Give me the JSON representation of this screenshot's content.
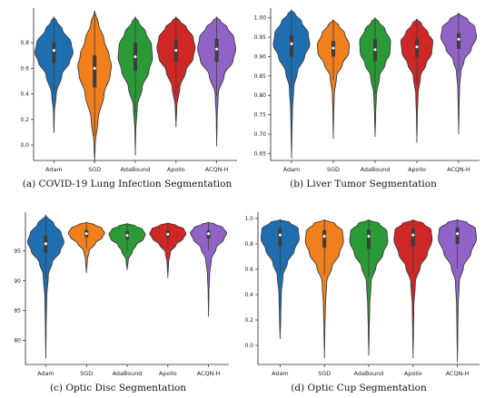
{
  "colors": {
    "Adam": "#1f6fb0",
    "SGD": "#f07f1c",
    "AdaBound": "#2a9a37",
    "Apollo": "#cf2626",
    "ACQN-H": "#9163c6"
  },
  "chart_data": [
    {
      "type": "violin",
      "caption": "(a) COVID-19 Lung Infection Segmentation",
      "categories": [
        "Adam",
        "SGD",
        "AdaBound",
        "Apollo",
        "ACQN-H"
      ],
      "yticks": [
        "0.0",
        "0.2",
        "0.4",
        "0.6",
        "0.8"
      ],
      "ytick_values": [
        0.0,
        0.2,
        0.4,
        0.6,
        0.8
      ],
      "ylim": [
        -0.12,
        1.07
      ],
      "violins": [
        {
          "name": "Adam",
          "min": 0.1,
          "max": 1.0,
          "q1": 0.64,
          "q3": 0.8,
          "median": 0.74,
          "profile": [
            [
              0.1,
              0.004
            ],
            [
              0.25,
              0.02
            ],
            [
              0.4,
              0.12
            ],
            [
              0.55,
              0.42
            ],
            [
              0.65,
              0.82
            ],
            [
              0.72,
              1.0
            ],
            [
              0.8,
              0.9
            ],
            [
              0.9,
              0.45
            ],
            [
              0.97,
              0.14
            ],
            [
              1.0,
              0.0
            ]
          ]
        },
        {
          "name": "SGD",
          "min": -0.13,
          "max": 1.05,
          "q1": 0.45,
          "q3": 0.7,
          "median": 0.6,
          "profile": [
            [
              -0.13,
              0.0
            ],
            [
              0.0,
              0.03
            ],
            [
              0.2,
              0.18
            ],
            [
              0.4,
              0.5
            ],
            [
              0.55,
              0.82
            ],
            [
              0.62,
              0.88
            ],
            [
              0.7,
              0.76
            ],
            [
              0.82,
              0.5
            ],
            [
              0.95,
              0.2
            ],
            [
              1.05,
              0.0
            ]
          ]
        },
        {
          "name": "AdaBound",
          "min": -0.08,
          "max": 1.0,
          "q1": 0.58,
          "q3": 0.8,
          "median": 0.69,
          "profile": [
            [
              -0.08,
              0.0
            ],
            [
              0.1,
              0.02
            ],
            [
              0.3,
              0.1
            ],
            [
              0.45,
              0.36
            ],
            [
              0.58,
              0.72
            ],
            [
              0.68,
              0.9
            ],
            [
              0.78,
              0.85
            ],
            [
              0.88,
              0.55
            ],
            [
              0.96,
              0.18
            ],
            [
              1.0,
              0.0
            ]
          ]
        },
        {
          "name": "Apollo",
          "min": 0.14,
          "max": 1.0,
          "q1": 0.65,
          "q3": 0.82,
          "median": 0.74,
          "profile": [
            [
              0.14,
              0.0
            ],
            [
              0.3,
              0.04
            ],
            [
              0.45,
              0.2
            ],
            [
              0.58,
              0.52
            ],
            [
              0.68,
              0.9
            ],
            [
              0.76,
              1.0
            ],
            [
              0.84,
              0.9
            ],
            [
              0.92,
              0.55
            ],
            [
              0.97,
              0.2
            ],
            [
              1.0,
              0.0
            ]
          ]
        },
        {
          "name": "ACQN-H",
          "min": -0.01,
          "max": 1.0,
          "q1": 0.65,
          "q3": 0.83,
          "median": 0.75,
          "profile": [
            [
              -0.01,
              0.0
            ],
            [
              0.2,
              0.02
            ],
            [
              0.4,
              0.08
            ],
            [
              0.55,
              0.4
            ],
            [
              0.66,
              0.86
            ],
            [
              0.75,
              1.0
            ],
            [
              0.84,
              0.9
            ],
            [
              0.92,
              0.55
            ],
            [
              0.97,
              0.2
            ],
            [
              1.0,
              0.0
            ]
          ]
        }
      ]
    },
    {
      "type": "violin",
      "caption": "(b) Liver Tumor Segmentation",
      "categories": [
        "Adam",
        "SGD",
        "AdaBound",
        "Apollo",
        "ACQN-H"
      ],
      "yticks": [
        "0.65",
        "0.70",
        "0.75",
        "0.80",
        "0.85",
        "0.90",
        "0.95",
        "1.00"
      ],
      "ytick_values": [
        0.65,
        0.7,
        0.75,
        0.8,
        0.85,
        0.9,
        0.95,
        1.0
      ],
      "ylim": [
        0.632,
        1.025
      ],
      "violins": [
        {
          "name": "Adam",
          "min": 0.638,
          "max": 1.02,
          "q1": 0.9,
          "q3": 0.955,
          "median": 0.933,
          "profile": [
            [
              0.638,
              0.0
            ],
            [
              0.7,
              0.02
            ],
            [
              0.76,
              0.05
            ],
            [
              0.82,
              0.12
            ],
            [
              0.86,
              0.32
            ],
            [
              0.9,
              0.72
            ],
            [
              0.93,
              1.0
            ],
            [
              0.96,
              0.92
            ],
            [
              0.99,
              0.55
            ],
            [
              1.01,
              0.2
            ],
            [
              1.02,
              0.0
            ]
          ]
        },
        {
          "name": "SGD",
          "min": 0.688,
          "max": 0.995,
          "q1": 0.9,
          "q3": 0.94,
          "median": 0.922,
          "profile": [
            [
              0.688,
              0.0
            ],
            [
              0.75,
              0.02
            ],
            [
              0.8,
              0.05
            ],
            [
              0.85,
              0.18
            ],
            [
              0.88,
              0.5
            ],
            [
              0.91,
              0.85
            ],
            [
              0.93,
              0.88
            ],
            [
              0.96,
              0.62
            ],
            [
              0.98,
              0.3
            ],
            [
              0.995,
              0.0
            ]
          ]
        },
        {
          "name": "AdaBound",
          "min": 0.693,
          "max": 1.0,
          "q1": 0.888,
          "q3": 0.945,
          "median": 0.918,
          "profile": [
            [
              0.693,
              0.0
            ],
            [
              0.75,
              0.03
            ],
            [
              0.8,
              0.07
            ],
            [
              0.85,
              0.25
            ],
            [
              0.88,
              0.55
            ],
            [
              0.91,
              0.82
            ],
            [
              0.94,
              0.85
            ],
            [
              0.97,
              0.55
            ],
            [
              0.99,
              0.2
            ],
            [
              1.0,
              0.0
            ]
          ]
        },
        {
          "name": "Apollo",
          "min": 0.678,
          "max": 0.997,
          "q1": 0.898,
          "q3": 0.945,
          "median": 0.925,
          "profile": [
            [
              0.678,
              0.0
            ],
            [
              0.74,
              0.02
            ],
            [
              0.8,
              0.06
            ],
            [
              0.85,
              0.2
            ],
            [
              0.88,
              0.5
            ],
            [
              0.91,
              0.82
            ],
            [
              0.94,
              0.88
            ],
            [
              0.96,
              0.62
            ],
            [
              0.985,
              0.25
            ],
            [
              0.997,
              0.0
            ]
          ]
        },
        {
          "name": "ACQN-H",
          "min": 0.7,
          "max": 1.012,
          "q1": 0.92,
          "q3": 0.96,
          "median": 0.945,
          "profile": [
            [
              0.7,
              0.0
            ],
            [
              0.76,
              0.02
            ],
            [
              0.82,
              0.05
            ],
            [
              0.86,
              0.12
            ],
            [
              0.89,
              0.3
            ],
            [
              0.92,
              0.7
            ],
            [
              0.95,
              0.98
            ],
            [
              0.975,
              0.9
            ],
            [
              0.995,
              0.5
            ],
            [
              1.012,
              0.0
            ]
          ]
        }
      ]
    },
    {
      "type": "violin",
      "caption": "(c) Optic Disc Segmentation",
      "categories": [
        "Adam",
        "SGD",
        "AdaBound",
        "Apollo",
        "ACQN-H"
      ],
      "yticks": [
        "80",
        "85",
        "90",
        "95"
      ],
      "ytick_values": [
        80,
        85,
        90,
        95
      ],
      "ylim": [
        76,
        101.5
      ],
      "violins": [
        {
          "name": "Adam",
          "min": 77,
          "max": 101,
          "q1": 94.7,
          "q3": 97.6,
          "median": 96.2,
          "profile": [
            [
              77,
              0.0
            ],
            [
              82,
              0.02
            ],
            [
              87,
              0.05
            ],
            [
              91,
              0.14
            ],
            [
              93,
              0.35
            ],
            [
              95,
              0.8
            ],
            [
              96.5,
              1.0
            ],
            [
              98,
              0.85
            ],
            [
              99.5,
              0.45
            ],
            [
              101,
              0.0
            ]
          ]
        },
        {
          "name": "SGD",
          "min": 91.3,
          "max": 99.8,
          "q1": 97.3,
          "q3": 98.5,
          "median": 97.9,
          "profile": [
            [
              91.3,
              0.0
            ],
            [
              93.5,
              0.05
            ],
            [
              95,
              0.15
            ],
            [
              96.3,
              0.5
            ],
            [
              97.3,
              0.88
            ],
            [
              98,
              1.0
            ],
            [
              98.8,
              0.85
            ],
            [
              99.4,
              0.45
            ],
            [
              99.8,
              0.0
            ]
          ]
        },
        {
          "name": "AdaBound",
          "min": 91.8,
          "max": 99.6,
          "q1": 97.0,
          "q3": 98.3,
          "median": 97.6,
          "profile": [
            [
              91.8,
              0.0
            ],
            [
              93.5,
              0.06
            ],
            [
              95,
              0.3
            ],
            [
              96,
              0.5
            ],
            [
              97,
              0.9
            ],
            [
              97.8,
              1.0
            ],
            [
              98.6,
              0.85
            ],
            [
              99.2,
              0.45
            ],
            [
              99.6,
              0.0
            ]
          ]
        },
        {
          "name": "Apollo",
          "min": 90.5,
          "max": 99.7,
          "q1": 97.2,
          "q3": 98.4,
          "median": 97.8,
          "profile": [
            [
              90.5,
              0.0
            ],
            [
              93,
              0.04
            ],
            [
              94.8,
              0.14
            ],
            [
              96,
              0.45
            ],
            [
              97.1,
              0.85
            ],
            [
              97.9,
              1.0
            ],
            [
              98.7,
              0.88
            ],
            [
              99.3,
              0.45
            ],
            [
              99.7,
              0.0
            ]
          ]
        },
        {
          "name": "ACQN-H",
          "min": 84,
          "max": 99.8,
          "q1": 97.1,
          "q3": 98.4,
          "median": 97.9,
          "profile": [
            [
              84,
              0.0
            ],
            [
              88,
              0.02
            ],
            [
              91,
              0.06
            ],
            [
              93.5,
              0.15
            ],
            [
              95.5,
              0.42
            ],
            [
              97,
              0.85
            ],
            [
              98,
              1.0
            ],
            [
              98.9,
              0.8
            ],
            [
              99.5,
              0.35
            ],
            [
              99.8,
              0.0
            ]
          ]
        }
      ]
    },
    {
      "type": "violin",
      "caption": "(d) Optic Cup Segmentation",
      "categories": [
        "Adam",
        "SGD",
        "AdaBound",
        "Apollo",
        "ACQN-H"
      ],
      "yticks": [
        "0.0",
        "0.2",
        "0.4",
        "0.6",
        "0.8",
        "1.0"
      ],
      "ytick_values": [
        0.0,
        0.2,
        0.4,
        0.6,
        0.8,
        1.0
      ],
      "ylim": [
        -0.15,
        1.05
      ],
      "violins": [
        {
          "name": "Adam",
          "min": 0.05,
          "max": 0.99,
          "q1": 0.78,
          "q3": 0.92,
          "median": 0.87,
          "profile": [
            [
              0.05,
              0.0
            ],
            [
              0.2,
              0.03
            ],
            [
              0.4,
              0.06
            ],
            [
              0.55,
              0.15
            ],
            [
              0.65,
              0.38
            ],
            [
              0.75,
              0.75
            ],
            [
              0.84,
              1.0
            ],
            [
              0.92,
              0.95
            ],
            [
              0.97,
              0.5
            ],
            [
              0.99,
              0.0
            ]
          ]
        },
        {
          "name": "SGD",
          "min": -0.1,
          "max": 0.99,
          "q1": 0.77,
          "q3": 0.91,
          "median": 0.86,
          "profile": [
            [
              -0.1,
              0.0
            ],
            [
              0.1,
              0.02
            ],
            [
              0.3,
              0.05
            ],
            [
              0.5,
              0.12
            ],
            [
              0.62,
              0.4
            ],
            [
              0.72,
              0.78
            ],
            [
              0.82,
              1.0
            ],
            [
              0.9,
              0.95
            ],
            [
              0.96,
              0.55
            ],
            [
              0.99,
              0.0
            ]
          ]
        },
        {
          "name": "AdaBound",
          "min": -0.08,
          "max": 0.99,
          "q1": 0.76,
          "q3": 0.91,
          "median": 0.86,
          "profile": [
            [
              -0.08,
              0.0
            ],
            [
              0.1,
              0.02
            ],
            [
              0.3,
              0.05
            ],
            [
              0.5,
              0.12
            ],
            [
              0.62,
              0.38
            ],
            [
              0.72,
              0.75
            ],
            [
              0.82,
              1.0
            ],
            [
              0.9,
              0.95
            ],
            [
              0.96,
              0.55
            ],
            [
              0.99,
              0.0
            ]
          ]
        },
        {
          "name": "Apollo",
          "min": -0.1,
          "max": 0.99,
          "q1": 0.78,
          "q3": 0.92,
          "median": 0.87,
          "profile": [
            [
              -0.1,
              0.0
            ],
            [
              0.1,
              0.02
            ],
            [
              0.3,
              0.04
            ],
            [
              0.5,
              0.12
            ],
            [
              0.62,
              0.38
            ],
            [
              0.72,
              0.75
            ],
            [
              0.83,
              1.0
            ],
            [
              0.91,
              0.95
            ],
            [
              0.96,
              0.55
            ],
            [
              0.99,
              0.0
            ]
          ]
        },
        {
          "name": "ACQN-H",
          "min": -0.13,
          "max": 0.99,
          "q1": 0.8,
          "q3": 0.93,
          "median": 0.88,
          "profile": [
            [
              -0.13,
              0.0
            ],
            [
              0.1,
              0.02
            ],
            [
              0.3,
              0.04
            ],
            [
              0.5,
              0.1
            ],
            [
              0.62,
              0.32
            ],
            [
              0.73,
              0.72
            ],
            [
              0.84,
              1.0
            ],
            [
              0.92,
              0.95
            ],
            [
              0.97,
              0.5
            ],
            [
              0.99,
              0.0
            ]
          ]
        }
      ]
    }
  ]
}
